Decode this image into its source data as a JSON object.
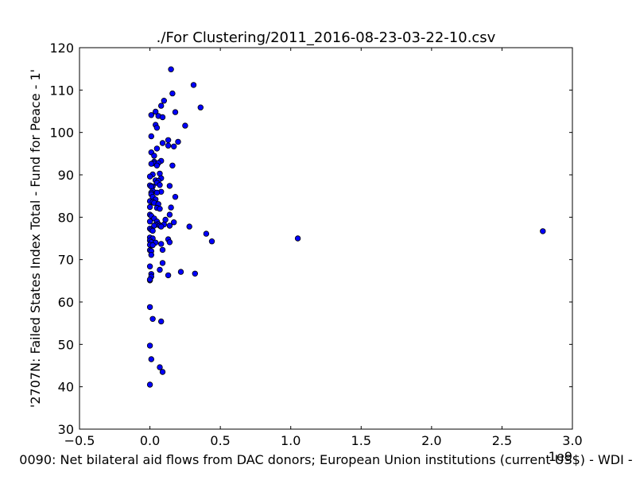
{
  "chart_data": {
    "type": "scatter",
    "title": "./For Clustering/2011_2016-08-23-03-22-10.csv",
    "xlabel": "0090: Net bilateral aid flows from DAC donors; European Union institutions  (current US$) - WDI -",
    "ylabel": "'2707N: Failed States Index Total - Fund for Peace - 1'",
    "x_offset_label": "1e9",
    "xlim": [
      -0.5,
      3.0
    ],
    "ylim": [
      30,
      120
    ],
    "xticks": [
      "−0.5",
      "0.0",
      "0.5",
      "1.0",
      "1.5",
      "2.0",
      "2.5",
      "3.0"
    ],
    "yticks": [
      "30",
      "40",
      "50",
      "60",
      "70",
      "80",
      "90",
      "100",
      "110",
      "120"
    ],
    "grid": false,
    "marker_color": "#0000ff",
    "marker_edge_color": "#000000",
    "x": [
      0.15,
      0.31,
      0.36,
      0.16,
      0.1,
      0.08,
      0.18,
      0.04,
      0.06,
      0.01,
      0.09,
      0.25,
      0.04,
      0.05,
      0.01,
      0.2,
      0.13,
      0.09,
      0.13,
      0.17,
      0.05,
      0.01,
      0.03,
      0.03,
      0.08,
      0.03,
      0.01,
      0.06,
      0.05,
      0.16,
      0.02,
      0.0,
      0.07,
      0.04,
      0.08,
      0.06,
      0.05,
      0.0,
      0.02,
      0.01,
      0.14,
      0.07,
      0.08,
      0.02,
      0.01,
      0.01,
      0.05,
      0.18,
      0.02,
      0.04,
      0.0,
      0.02,
      0.03,
      0.06,
      0.0,
      0.15,
      0.05,
      0.07,
      0.14,
      0.0,
      0.01,
      0.11,
      0.03,
      0.0,
      0.05,
      0.06,
      0.04,
      0.1,
      0.17,
      0.03,
      0.07,
      0.08,
      0.14,
      0.28,
      0.0,
      0.01,
      0.02,
      0.4,
      0.0,
      0.02,
      0.13,
      0.0,
      0.44,
      0.01,
      0.04,
      0.14,
      0.08,
      0.0,
      0.02,
      1.05,
      2.79,
      0.0,
      0.01,
      0.09,
      0.01,
      0.09,
      0.0,
      0.07,
      0.22,
      0.32,
      0.13,
      0.01,
      0.01,
      0.0,
      0.0,
      0.0,
      0.02,
      0.08,
      0.0,
      0.01,
      0.07,
      0.09,
      0.0
    ],
    "y": [
      114.9,
      111.2,
      105.9,
      109.2,
      107.5,
      106.3,
      104.8,
      104.9,
      103.9,
      104.1,
      103.6,
      101.6,
      101.8,
      101.1,
      99.1,
      97.8,
      98.2,
      97.5,
      96.9,
      96.7,
      96.2,
      95.3,
      94.5,
      93.1,
      93.3,
      92.7,
      92.6,
      92.8,
      92.2,
      92.2,
      90.1,
      89.6,
      90.3,
      88.7,
      89.2,
      88.6,
      88.1,
      87.5,
      87.3,
      87.2,
      87.4,
      87.6,
      86.0,
      86.2,
      85.8,
      85.4,
      85.8,
      84.8,
      84.8,
      84.2,
      83.8,
      83.6,
      83.4,
      83.1,
      82.4,
      82.3,
      82.2,
      82.0,
      80.6,
      80.6,
      80.3,
      79.4,
      79.7,
      79.0,
      79.0,
      78.4,
      78.2,
      78.3,
      78.8,
      78.0,
      78.0,
      77.8,
      78.0,
      77.8,
      77.3,
      77.0,
      76.8,
      76.1,
      75.2,
      75.0,
      74.8,
      74.5,
      74.3,
      74.1,
      74.0,
      74.1,
      73.7,
      73.5,
      73.4,
      75.0,
      76.7,
      72.2,
      72.0,
      72.3,
      71.1,
      69.2,
      68.4,
      67.6,
      67.1,
      66.7,
      66.3,
      66.6,
      66.0,
      65.1,
      65.3,
      58.8,
      56.0,
      55.4,
      49.7,
      46.5,
      44.6,
      43.5,
      40.5
    ]
  }
}
